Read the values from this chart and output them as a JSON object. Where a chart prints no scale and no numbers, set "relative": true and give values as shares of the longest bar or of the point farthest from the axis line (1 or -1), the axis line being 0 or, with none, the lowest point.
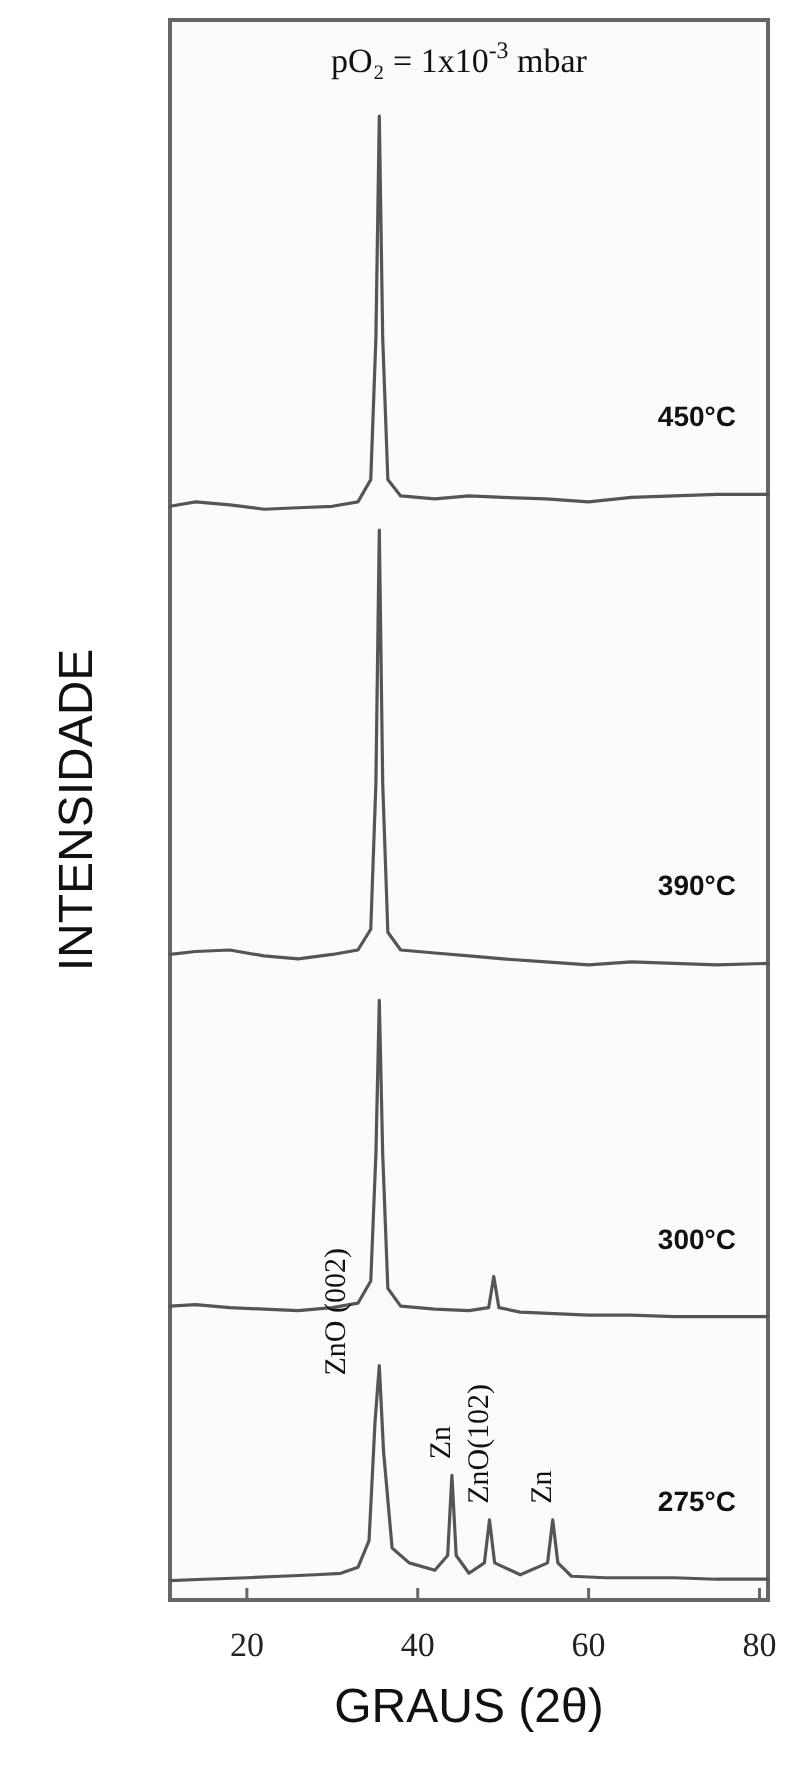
{
  "chart_data": {
    "type": "line",
    "relative": true,
    "xlabel": "GRAUS (2θ)",
    "ylabel": "INTENSIDADE",
    "xlim": [
      11,
      81
    ],
    "xticks": [
      20,
      40,
      60,
      80
    ],
    "legend": false,
    "grid": false,
    "marker": "none",
    "line_style": "solid",
    "tick_labels": "x",
    "annotations": [
      "pO₂ = 1x10$^{-3}$ mbar",
      {
        "text": "ZnO (002)",
        "x": 35.5,
        "y": 0.158
      },
      {
        "text": "Zn",
        "x": 44,
        "y": 0.084
      },
      {
        "text": "ZnO(102)",
        "x": 48.4,
        "y": 0.054
      },
      {
        "text": "Zn",
        "x": 55.8,
        "y": 0.054
      }
    ],
    "series": [
      {
        "name": "450°C",
        "color": "#555555",
        "x": [
          11,
          14,
          18,
          22,
          26,
          30,
          33,
          34.5,
          35.1,
          35.5,
          35.9,
          36.5,
          38,
          42,
          46,
          50,
          55,
          60,
          65,
          70,
          75,
          81
        ],
        "values": [
          0.737,
          0.74,
          0.738,
          0.735,
          0.736,
          0.737,
          0.74,
          0.755,
          0.85,
          1.0,
          0.85,
          0.755,
          0.744,
          0.742,
          0.744,
          0.743,
          0.742,
          0.74,
          0.743,
          0.744,
          0.745,
          0.745
        ]
      },
      {
        "name": "390°C",
        "color": "#555555",
        "x": [
          11,
          14,
          18,
          22,
          26,
          30,
          33,
          34.5,
          35.1,
          35.5,
          35.9,
          36.5,
          38,
          42,
          46,
          50,
          55,
          60,
          65,
          70,
          75,
          81
        ],
        "values": [
          0.435,
          0.437,
          0.438,
          0.434,
          0.432,
          0.435,
          0.438,
          0.452,
          0.55,
          0.721,
          0.55,
          0.45,
          0.438,
          0.436,
          0.434,
          0.432,
          0.43,
          0.428,
          0.43,
          0.429,
          0.428,
          0.429
        ]
      },
      {
        "name": "300°C",
        "color": "#555555",
        "x": [
          11,
          14,
          18,
          22,
          26,
          30,
          33,
          34.5,
          35.1,
          35.5,
          35.9,
          36.5,
          38,
          42,
          46,
          48.3,
          48.9,
          49.5,
          52,
          56,
          60,
          65,
          70,
          75,
          81
        ],
        "values": [
          0.198,
          0.199,
          0.197,
          0.196,
          0.195,
          0.197,
          0.2,
          0.215,
          0.3,
          0.404,
          0.3,
          0.21,
          0.198,
          0.196,
          0.195,
          0.197,
          0.218,
          0.197,
          0.194,
          0.193,
          0.192,
          0.192,
          0.191,
          0.191,
          0.191
        ]
      },
      {
        "name": "275°C",
        "color": "#555555",
        "x": [
          11,
          15,
          20,
          24,
          28,
          31,
          33,
          34.3,
          35,
          35.5,
          36,
          37,
          39,
          42,
          43.5,
          44,
          44.5,
          46,
          47.8,
          48.4,
          49,
          52,
          55.2,
          55.8,
          56.4,
          58,
          62,
          66,
          70,
          75,
          81
        ],
        "values": [
          0.013,
          0.014,
          0.015,
          0.016,
          0.017,
          0.018,
          0.022,
          0.04,
          0.12,
          0.158,
          0.1,
          0.035,
          0.025,
          0.02,
          0.03,
          0.084,
          0.03,
          0.018,
          0.025,
          0.054,
          0.025,
          0.017,
          0.025,
          0.054,
          0.025,
          0.016,
          0.015,
          0.015,
          0.015,
          0.014,
          0.014
        ]
      }
    ]
  }
}
